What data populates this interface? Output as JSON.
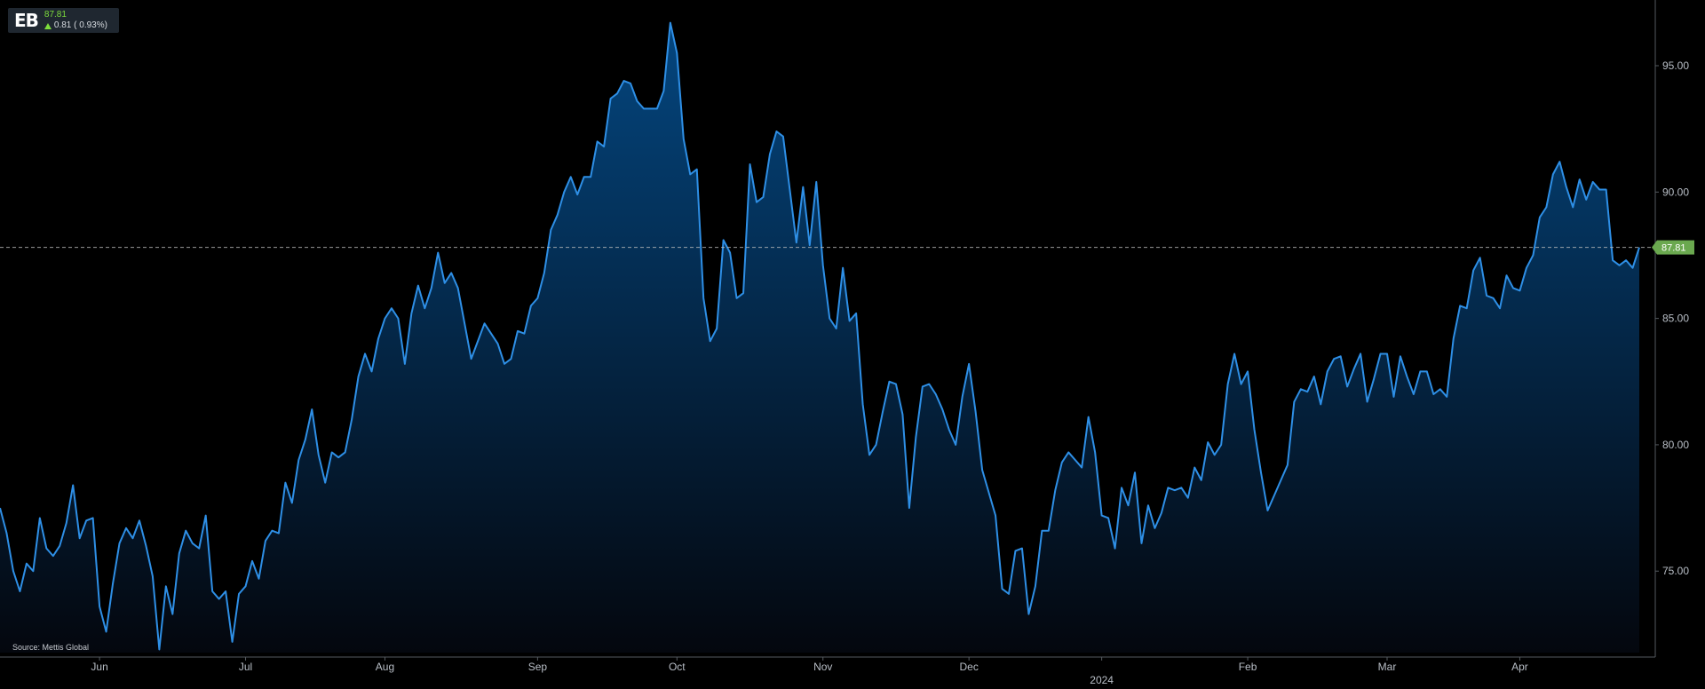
{
  "ticker": {
    "symbol": "EB",
    "last_price": "87.81",
    "change_text": "0.81 ( 0.93%)"
  },
  "source": "Source: Mettis Global",
  "current_price_label": "87.81",
  "colors": {
    "background": "#000000",
    "line": "#2e8fe6",
    "fill_top": "#04467f",
    "fill_bottom": "#04070e",
    "price_tag": "#6aa84f",
    "dashed_line": "#c0c0c0",
    "axis": "#555a60"
  },
  "chart_data": {
    "type": "area",
    "title": "",
    "xlabel": "",
    "ylabel": "",
    "ylim": [
      71.6,
      97.6
    ],
    "yticks": [
      {
        "value": 95,
        "label": "95.00"
      },
      {
        "value": 90,
        "label": "90.00"
      },
      {
        "value": 85,
        "label": "85.00"
      },
      {
        "value": 80,
        "label": "80.00"
      },
      {
        "value": 75,
        "label": "75.00"
      }
    ],
    "xticks": [
      {
        "index": 15,
        "label": "Jun",
        "sublabel": ""
      },
      {
        "index": 37,
        "label": "Jul",
        "sublabel": ""
      },
      {
        "index": 58,
        "label": "Aug",
        "sublabel": ""
      },
      {
        "index": 81,
        "label": "Sep",
        "sublabel": ""
      },
      {
        "index": 102,
        "label": "Oct",
        "sublabel": ""
      },
      {
        "index": 124,
        "label": "Nov",
        "sublabel": ""
      },
      {
        "index": 146,
        "label": "Dec",
        "sublabel": ""
      },
      {
        "index": 166,
        "label": "",
        "sublabel": "2024"
      },
      {
        "index": 188,
        "label": "Feb",
        "sublabel": ""
      },
      {
        "index": 209,
        "label": "Mar",
        "sublabel": ""
      },
      {
        "index": 229,
        "label": "Apr",
        "sublabel": ""
      }
    ],
    "last_price": 87.81,
    "grid": false,
    "series": [
      {
        "name": "",
        "values": [
          77.5,
          76.5,
          75.0,
          74.2,
          75.3,
          75.0,
          77.1,
          75.9,
          75.6,
          76.0,
          76.9,
          78.4,
          76.3,
          77.0,
          77.1,
          73.6,
          72.6,
          74.5,
          76.1,
          76.7,
          76.3,
          77.0,
          76.0,
          74.8,
          71.9,
          74.4,
          73.3,
          75.7,
          76.6,
          76.1,
          75.9,
          77.2,
          74.2,
          73.9,
          74.2,
          72.2,
          74.1,
          74.4,
          75.4,
          74.7,
          76.2,
          76.6,
          76.5,
          78.5,
          77.7,
          79.4,
          80.2,
          81.4,
          79.6,
          78.5,
          79.7,
          79.5,
          79.7,
          81.0,
          82.7,
          83.6,
          82.9,
          84.2,
          85.0,
          85.4,
          85.0,
          83.2,
          85.2,
          86.3,
          85.4,
          86.2,
          87.6,
          86.4,
          86.8,
          86.2,
          84.8,
          83.4,
          84.1,
          84.8,
          84.4,
          84.0,
          83.2,
          83.4,
          84.5,
          84.4,
          85.5,
          85.8,
          86.8,
          88.5,
          89.1,
          90.0,
          90.6,
          89.9,
          90.6,
          90.6,
          92.0,
          91.8,
          93.7,
          93.9,
          94.4,
          94.3,
          93.6,
          93.3,
          93.3,
          93.3,
          94.0,
          96.7,
          95.5,
          92.1,
          90.7,
          90.9,
          85.8,
          84.1,
          84.6,
          88.1,
          87.6,
          85.8,
          86.0,
          91.1,
          89.6,
          89.8,
          91.5,
          92.4,
          92.2,
          90.1,
          88.0,
          90.2,
          87.9,
          90.4,
          87.1,
          85.0,
          84.6,
          87.0,
          84.9,
          85.2,
          81.6,
          79.6,
          80.0,
          81.3,
          82.5,
          82.4,
          81.2,
          77.5,
          80.3,
          82.3,
          82.4,
          82.0,
          81.4,
          80.6,
          80.0,
          81.9,
          83.2,
          81.3,
          79.0,
          78.1,
          77.2,
          74.3,
          74.1,
          75.8,
          75.9,
          73.3,
          74.4,
          76.6,
          76.6,
          78.2,
          79.3,
          79.7,
          79.4,
          79.1,
          81.1,
          79.7,
          77.2,
          77.1,
          75.9,
          78.3,
          77.6,
          78.9,
          76.1,
          77.6,
          76.7,
          77.3,
          78.3,
          78.2,
          78.3,
          77.9,
          79.1,
          78.6,
          80.1,
          79.6,
          80.0,
          82.4,
          83.6,
          82.4,
          82.9,
          80.6,
          78.9,
          77.4,
          78.0,
          78.6,
          79.2,
          81.7,
          82.2,
          82.1,
          82.7,
          81.6,
          82.9,
          83.4,
          83.5,
          82.3,
          83.0,
          83.6,
          81.7,
          82.6,
          83.6,
          83.6,
          81.9,
          83.5,
          82.7,
          82.0,
          82.9,
          82.9,
          82.0,
          82.2,
          81.9,
          84.2,
          85.5,
          85.4,
          86.9,
          87.4,
          85.9,
          85.8,
          85.4,
          86.7,
          86.2,
          86.1,
          87.0,
          87.5,
          89.0,
          89.4,
          90.7,
          91.2,
          90.2,
          89.4,
          90.5,
          89.7,
          90.4,
          90.1,
          90.1,
          87.3,
          87.1,
          87.3,
          87.0,
          87.81
        ]
      }
    ]
  }
}
